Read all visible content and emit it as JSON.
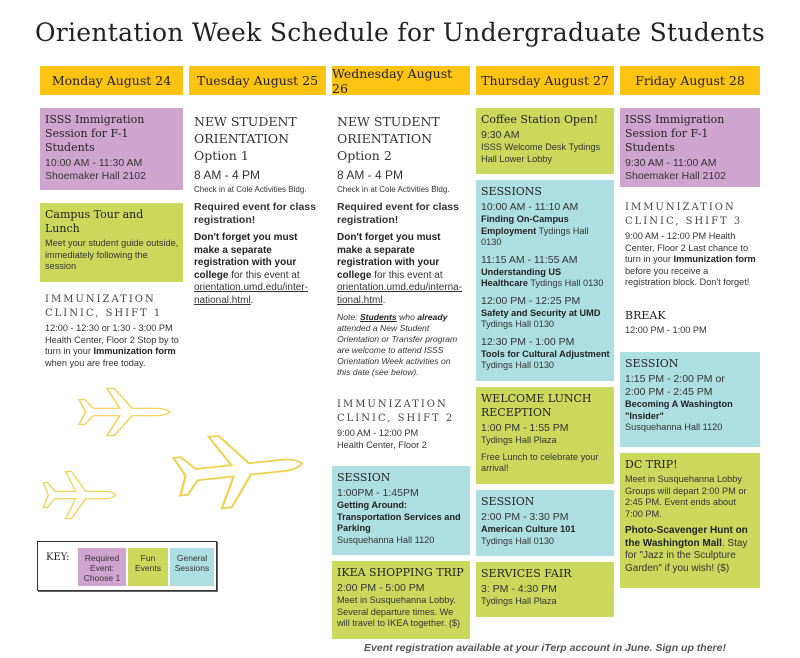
{
  "title": "Orientation Week Schedule for Undergraduate Students",
  "colors": {
    "header": "#fdc312",
    "required": "#cfa5cf",
    "fun": "#cad85c",
    "session": "#addfe2",
    "planes": "#f2cf4c"
  },
  "days": [
    {
      "header": "Monday August 24",
      "blocks": [
        {
          "type": "purple",
          "title": "ISSS Immigration Session for F-1 Students",
          "title_style": "",
          "paras": [
            {
              "kind": "time tight",
              "segs": [
                {
                  "t": "10:00 AM - 11:30 AM"
                }
              ]
            },
            {
              "kind": "time",
              "segs": [
                {
                  "t": "Shoemaker Hall 2102"
                }
              ]
            }
          ]
        },
        {
          "type": "green",
          "title": "Campus Tour and Lunch",
          "title_style": "",
          "paras": [
            {
              "kind": "",
              "segs": [
                {
                  "t": "Meet your student guide outside, immediately following the session"
                }
              ]
            }
          ]
        },
        {
          "type": "plain",
          "title": "IMMUNIZATION CLINIC, SHIFT 1",
          "title_style": "spaced",
          "paras": [
            {
              "kind": "",
              "segs": [
                {
                  "t": "12:00 - 12:30 or 1:30 - 3:00 PM Health Center, Floor 2 Stop by to turn in your "
                },
                {
                  "t": "Immunization form",
                  "b": true
                },
                {
                  "t": " when you are free today."
                }
              ]
            }
          ]
        }
      ]
    },
    {
      "header": "Tuesday August 25",
      "blocks": [
        {
          "type": "plain",
          "title": "NEW STUDENT ORIENTATION Option 1",
          "title_style": "big",
          "paras": [
            {
              "kind": "bigtime",
              "segs": [
                {
                  "t": "8 AM - 4 PM"
                }
              ]
            },
            {
              "kind": "small",
              "segs": [
                {
                  "t": "Check in at Cole Activities Bldg."
                }
              ]
            },
            {
              "kind": "req",
              "segs": [
                {
                  "t": "Required event for class registration!"
                }
              ]
            },
            {
              "kind": "reg",
              "segs": [
                {
                  "t": "Don't forget you must make a separate registration with your college",
                  "b": true
                },
                {
                  "t": " for this event at "
                },
                {
                  "t": "orientation.umd.edu/inter-national.html",
                  "u": true
                },
                {
                  "t": "."
                }
              ]
            }
          ]
        }
      ]
    },
    {
      "header": "Wednesday August 26",
      "blocks": [
        {
          "type": "plain",
          "title": "NEW STUDENT ORIENTATION Option 2",
          "title_style": "big",
          "paras": [
            {
              "kind": "bigtime",
              "segs": [
                {
                  "t": "8 AM - 4 PM"
                }
              ]
            },
            {
              "kind": "small",
              "segs": [
                {
                  "t": "Check in at Cole Activities Bldg."
                }
              ]
            },
            {
              "kind": "req",
              "segs": [
                {
                  "t": "Required event for class registration!"
                }
              ]
            },
            {
              "kind": "reg",
              "segs": [
                {
                  "t": "Don't forget you must make a separate registration with your college",
                  "b": true
                },
                {
                  "t": " for this event at "
                },
                {
                  "t": "orientation.umd.edu/interna-tional.html",
                  "u": true
                },
                {
                  "t": "."
                }
              ]
            },
            {
              "kind": "note",
              "segs": [
                {
                  "t": "Note: "
                },
                {
                  "t": "Students",
                  "b": true,
                  "u": true
                },
                {
                  "t": " who "
                },
                {
                  "t": "already",
                  "b": true
                },
                {
                  "t": " attended a New Student Orientation or Transfer program are welcome to attend ISSS Orientation Week activities on this date (see below)."
                }
              ]
            }
          ]
        },
        {
          "type": "plain",
          "title": "IMMUNIZATION CLINIC, SHIFT 2",
          "title_style": "spaced",
          "paras": [
            {
              "kind": "tight",
              "segs": [
                {
                  "t": "9:00 AM - 12:00 PM"
                }
              ]
            },
            {
              "kind": "",
              "segs": [
                {
                  "t": "Health Center, Floor 2"
                }
              ]
            }
          ]
        },
        {
          "type": "blue",
          "title": "SESSION",
          "title_style": "",
          "paras": [
            {
              "kind": "time",
              "segs": [
                {
                  "t": "1:00PM - 1:45PM"
                }
              ]
            },
            {
              "kind": "tight",
              "segs": [
                {
                  "t": "Getting Around: Transportation Services and Parking",
                  "b": true
                }
              ]
            },
            {
              "kind": "",
              "segs": [
                {
                  "t": "Susquehanna Hall 1120"
                }
              ]
            }
          ]
        },
        {
          "type": "green",
          "title": "IKEA SHOPPING TRIP",
          "title_style": "",
          "paras": [
            {
              "kind": "time",
              "segs": [
                {
                  "t": "2:00 PM - 5:00 PM"
                }
              ]
            },
            {
              "kind": "",
              "segs": [
                {
                  "t": "Meet in Susquehanna Lobby. Several departure times. We will travel to IKEA together. ($)"
                }
              ]
            }
          ]
        }
      ]
    },
    {
      "header": "Thursday August 27",
      "blocks": [
        {
          "type": "green",
          "title": "Coffee Station Open!",
          "title_style": "",
          "paras": [
            {
              "kind": "time",
              "segs": [
                {
                  "t": "9:30 AM"
                }
              ]
            },
            {
              "kind": "",
              "segs": [
                {
                  "t": "ISSS Welcome Desk Tydings Hall Lower Lobby"
                }
              ]
            }
          ]
        },
        {
          "type": "blue",
          "title": "SESSIONS",
          "title_style": "",
          "paras": [
            {
              "kind": "time",
              "segs": [
                {
                  "t": "10:00 AM - 11:10 AM"
                }
              ]
            },
            {
              "kind": "",
              "segs": [
                {
                  "t": "Finding On-Campus Employment",
                  "b": true
                },
                {
                  "t": " Tydings Hall 0130"
                }
              ]
            },
            {
              "kind": "time",
              "segs": [
                {
                  "t": "11:15 AM - 11:55 AM"
                }
              ]
            },
            {
              "kind": "",
              "segs": [
                {
                  "t": "Understanding US Healthcare",
                  "b": true
                },
                {
                  "t": " Tydings Hall 0130"
                }
              ]
            },
            {
              "kind": "time",
              "segs": [
                {
                  "t": "12:00 PM - 12:25 PM"
                }
              ]
            },
            {
              "kind": "",
              "segs": [
                {
                  "t": "Safety and Security at UMD",
                  "b": true
                },
                {
                  "t": " Tydings Hall 0130"
                }
              ]
            },
            {
              "kind": "time",
              "segs": [
                {
                  "t": "12:30 PM - 1:00 PM"
                }
              ]
            },
            {
              "kind": "",
              "segs": [
                {
                  "t": "Tools for Cultural Adjustment",
                  "b": true
                },
                {
                  "t": " Tydings Hall 0130"
                }
              ]
            }
          ]
        },
        {
          "type": "green",
          "title": "WELCOME LUNCH RECEPTION",
          "title_style": "",
          "paras": [
            {
              "kind": "time",
              "segs": [
                {
                  "t": "1:00 PM - 1:55 PM"
                }
              ]
            },
            {
              "kind": "",
              "segs": [
                {
                  "t": "Tydings Hall Plaza"
                }
              ]
            },
            {
              "kind": "",
              "segs": [
                {
                  "t": "Free Lunch to celebrate your arrival!"
                }
              ]
            }
          ]
        },
        {
          "type": "blue",
          "title": "SESSION",
          "title_style": "",
          "paras": [
            {
              "kind": "time",
              "segs": [
                {
                  "t": "2:00 PM - 3:30 PM"
                }
              ]
            },
            {
              "kind": "tight",
              "segs": [
                {
                  "t": "American Culture 101",
                  "b": true
                }
              ]
            },
            {
              "kind": "",
              "segs": [
                {
                  "t": "Tydings Hall 0130"
                }
              ]
            }
          ]
        },
        {
          "type": "green",
          "title": "SERVICES FAIR",
          "title_style": "",
          "paras": [
            {
              "kind": "time",
              "segs": [
                {
                  "t": "3: PM - 4:30 PM"
                }
              ]
            },
            {
              "kind": "",
              "segs": [
                {
                  "t": "Tydings Hall Plaza"
                }
              ]
            }
          ]
        }
      ]
    },
    {
      "header": "Friday August 28",
      "blocks": [
        {
          "type": "purple",
          "title": "ISSS Immigration Session for F-1 Students",
          "title_style": "",
          "paras": [
            {
              "kind": "time tight",
              "segs": [
                {
                  "t": "9:30 AM - 11:00 AM"
                }
              ]
            },
            {
              "kind": "time",
              "segs": [
                {
                  "t": "Shoemaker Hall 2102"
                }
              ]
            }
          ]
        },
        {
          "type": "plain",
          "title": "IMMUNIZATION CLINIC, SHIFT 3",
          "title_style": "spaced",
          "paras": [
            {
              "kind": "",
              "segs": [
                {
                  "t": "9:00 AM - 12:00 PM Health Center, Floor 2 Last chance to turn in your "
                },
                {
                  "t": "Immunization form",
                  "b": true
                },
                {
                  "t": " before you receive a registration block. Don't forget!"
                }
              ]
            }
          ]
        },
        {
          "type": "plain",
          "title": "BREAK",
          "title_style": "",
          "paras": [
            {
              "kind": "",
              "segs": [
                {
                  "t": "12:00 PM - 1:00 PM"
                }
              ]
            }
          ]
        },
        {
          "type": "blue",
          "title": "SESSION",
          "title_style": "",
          "paras": [
            {
              "kind": "time tight",
              "segs": [
                {
                  "t": "1:15 PM - 2:00 PM  or"
                }
              ]
            },
            {
              "kind": "time",
              "segs": [
                {
                  "t": "2:00 PM - 2:45 PM"
                }
              ]
            },
            {
              "kind": "tight",
              "segs": [
                {
                  "t": "Becoming A Washington \"Insider\"",
                  "b": true
                }
              ]
            },
            {
              "kind": "",
              "segs": [
                {
                  "t": "Susquehanna Hall 1120"
                }
              ]
            }
          ]
        },
        {
          "type": "green",
          "title": "DC TRIP!",
          "title_style": "",
          "paras": [
            {
              "kind": "",
              "segs": [
                {
                  "t": "Meet in Susquehanna Lobby Groups will depart 2:00 PM or 2:45 PM. Event ends about 7:00 PM."
                }
              ]
            },
            {
              "kind": "reg",
              "segs": [
                {
                  "t": "Photo-Scavenger Hunt on the Washington Mall",
                  "b": true
                },
                {
                  "t": ". Stay for \"Jazz in the Sculpture Garden\" if you wish! ($)"
                }
              ]
            }
          ]
        }
      ]
    }
  ],
  "key": {
    "label": "KEY:",
    "items": [
      "Required Event: Choose 1",
      "Fun Events",
      "General Sessions"
    ]
  },
  "footer": "Event registration available at your iTerp account in June. Sign up there!",
  "decoration_icons": [
    "airplane-icon",
    "airplane-icon",
    "airplane-icon"
  ]
}
